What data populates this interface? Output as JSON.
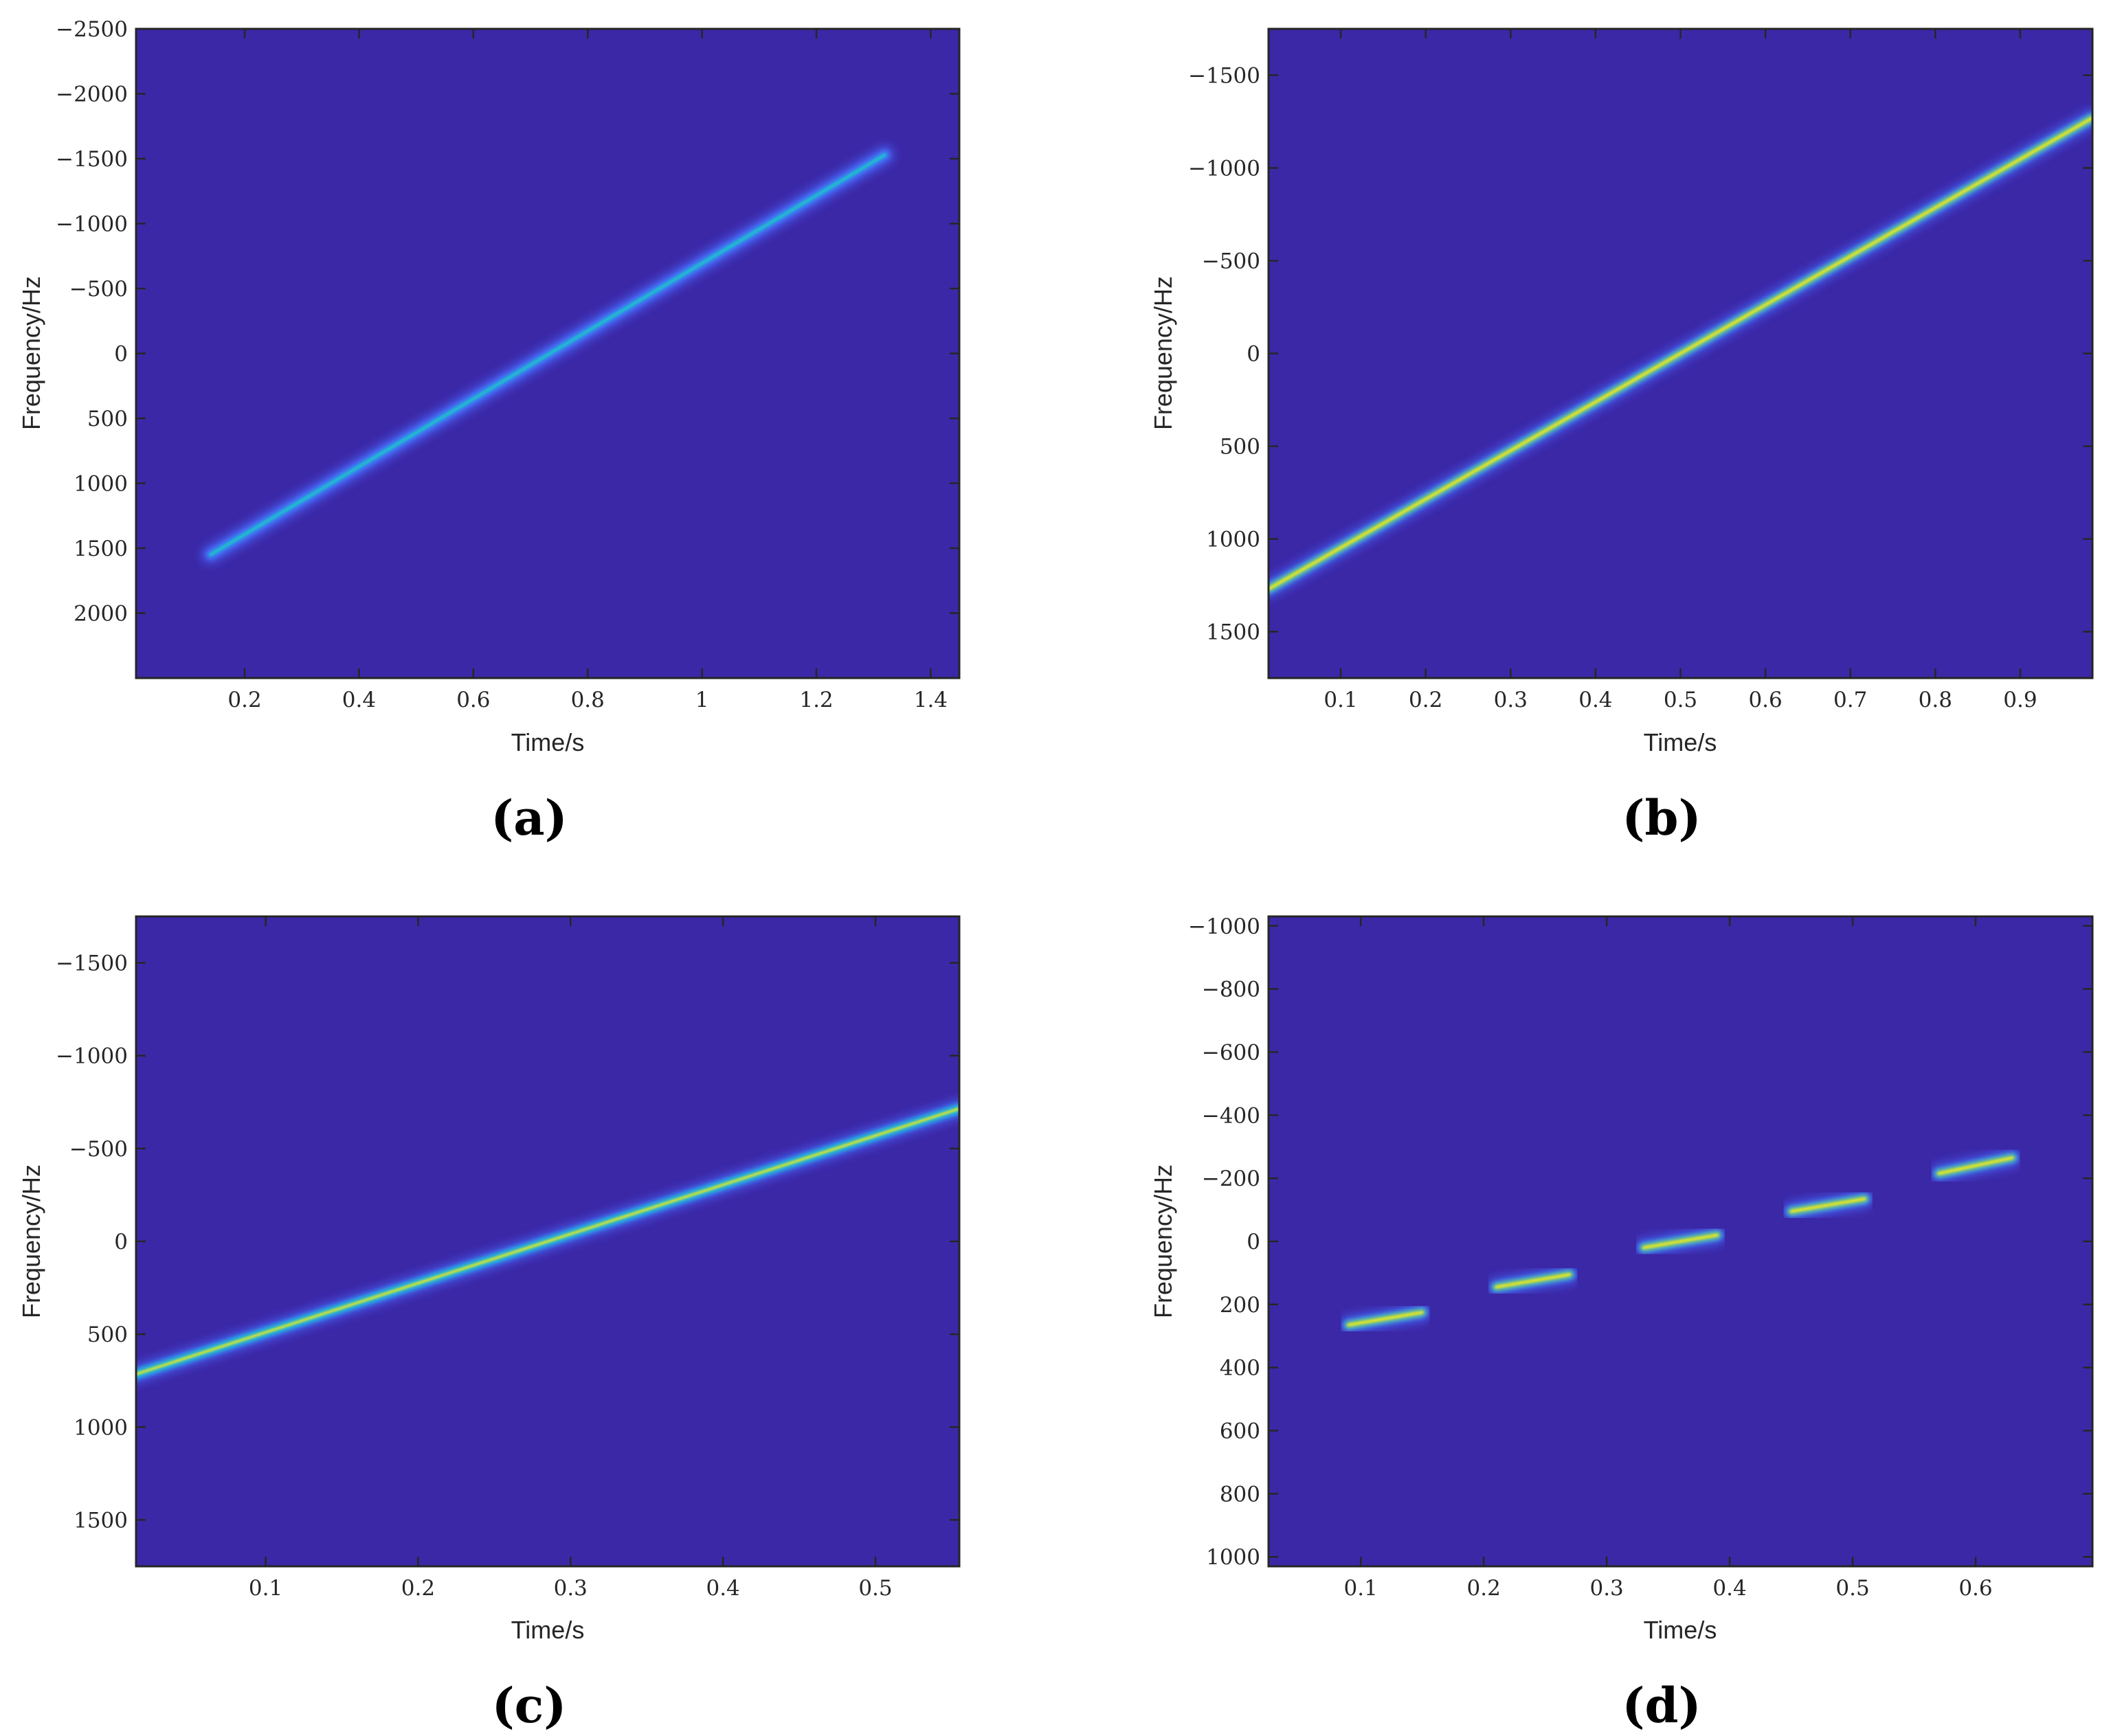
{
  "figure": {
    "colors": {
      "background": "#3b28a7",
      "colormap": [
        "#3b28a7",
        "#4a5ef0",
        "#2a9ff0",
        "#1fc6c2",
        "#8fd45a",
        "#f3e81b"
      ]
    }
  },
  "chart_data": [
    {
      "type": "heatmap",
      "panel_label": "(a)",
      "xlabel": "Time/s",
      "ylabel": "Frequency/Hz",
      "xlim": [
        0.01,
        1.45
      ],
      "ylim": [
        -2500,
        2500
      ],
      "y_inverted": true,
      "xticks": [
        0.2,
        0.4,
        0.6,
        0.8,
        1,
        1.2,
        1.4
      ],
      "xtick_labels": [
        "0.2",
        "0.4",
        "0.6",
        "0.8",
        "1",
        "1.2",
        "1.4"
      ],
      "yticks": [
        -2500,
        -2000,
        -1500,
        -1000,
        -500,
        0,
        500,
        1000,
        1500,
        2000
      ],
      "ytick_labels": [
        "−2500",
        "−2000",
        "−1500",
        "−1000",
        "−500",
        "0",
        "500",
        "1000",
        "1500",
        "2000"
      ],
      "segments": [
        {
          "x": [
            0.14,
            1.32
          ],
          "y": [
            1550,
            -1530
          ],
          "peak": 0.55
        }
      ]
    },
    {
      "type": "heatmap",
      "panel_label": "(b)",
      "xlabel": "Time/s",
      "ylabel": "Frequency/Hz",
      "xlim": [
        0.015,
        0.985
      ],
      "ylim": [
        -1750,
        1750
      ],
      "y_inverted": true,
      "xticks": [
        0.1,
        0.2,
        0.3,
        0.4,
        0.5,
        0.6,
        0.7,
        0.8,
        0.9
      ],
      "xtick_labels": [
        "0.1",
        "0.2",
        "0.3",
        "0.4",
        "0.5",
        "0.6",
        "0.7",
        "0.8",
        "0.9"
      ],
      "yticks": [
        -1500,
        -1000,
        -500,
        0,
        500,
        1000,
        1500
      ],
      "ytick_labels": [
        "−1500",
        "−1000",
        "−500",
        "0",
        "500",
        "1000",
        "1500"
      ],
      "segments": [
        {
          "x": [
            0.015,
            0.985
          ],
          "y": [
            1270,
            -1270
          ],
          "peak": 1.0
        }
      ]
    },
    {
      "type": "heatmap",
      "panel_label": "(c)",
      "xlabel": "Time/s",
      "ylabel": "Frequency/Hz",
      "xlim": [
        0.015,
        0.555
      ],
      "ylim": [
        -1750,
        1750
      ],
      "y_inverted": true,
      "xticks": [
        0.1,
        0.2,
        0.3,
        0.4,
        0.5
      ],
      "xtick_labels": [
        "0.1",
        "0.2",
        "0.3",
        "0.4",
        "0.5"
      ],
      "yticks": [
        -1500,
        -1000,
        -500,
        0,
        500,
        1000,
        1500
      ],
      "ytick_labels": [
        "−1500",
        "−1000",
        "−500",
        "0",
        "500",
        "1000",
        "1500"
      ],
      "segments": [
        {
          "x": [
            0.015,
            0.555
          ],
          "y": [
            715,
            -715
          ],
          "peak": 0.9
        }
      ]
    },
    {
      "type": "heatmap",
      "panel_label": "(d)",
      "xlabel": "Time/s",
      "ylabel": "Frequency/Hz",
      "xlim": [
        0.025,
        0.695
      ],
      "ylim": [
        -1030,
        1030
      ],
      "y_inverted": true,
      "xticks": [
        0.1,
        0.2,
        0.3,
        0.4,
        0.5,
        0.6
      ],
      "xtick_labels": [
        "0.1",
        "0.2",
        "0.3",
        "0.4",
        "0.5",
        "0.6"
      ],
      "yticks": [
        -1000,
        -800,
        -600,
        -400,
        -200,
        0,
        200,
        400,
        600,
        800,
        1000
      ],
      "ytick_labels": [
        "−1000",
        "−800",
        "−600",
        "−400",
        "−200",
        "0",
        "200",
        "400",
        "600",
        "800",
        "1000"
      ],
      "segments": [
        {
          "x": [
            0.09,
            0.15
          ],
          "y": [
            265,
            225
          ],
          "peak": 1.0
        },
        {
          "x": [
            0.21,
            0.27
          ],
          "y": [
            145,
            105
          ],
          "peak": 1.0
        },
        {
          "x": [
            0.33,
            0.39
          ],
          "y": [
            20,
            -20
          ],
          "peak": 1.0
        },
        {
          "x": [
            0.45,
            0.51
          ],
          "y": [
            -95,
            -135
          ],
          "peak": 1.0
        },
        {
          "x": [
            0.57,
            0.63
          ],
          "y": [
            -215,
            -265
          ],
          "peak": 1.0
        }
      ]
    }
  ]
}
